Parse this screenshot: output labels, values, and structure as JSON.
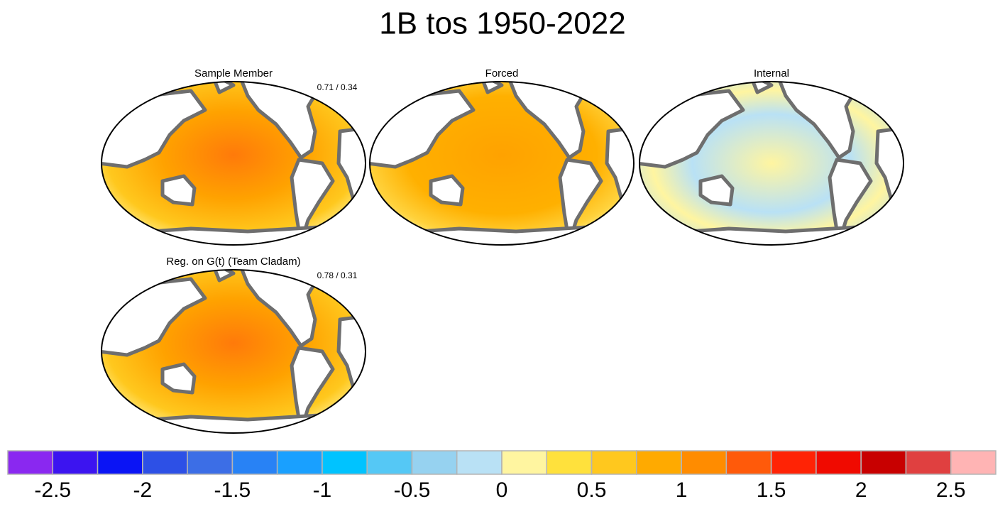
{
  "title": "1B tos 1950-2022",
  "panels": [
    {
      "title": "Sample Member",
      "annotation": "0.71 / 0.34"
    },
    {
      "title": "Forced"
    },
    {
      "title": "Internal"
    },
    {
      "title": "Reg. on G(t) (Team Cladam)",
      "annotation": "0.78 / 0.31"
    }
  ],
  "colorbar": {
    "lim": [
      -2.75,
      2.75
    ],
    "colors": [
      "#8a28f0",
      "#3c14f0",
      "#0a14f5",
      "#2d50e6",
      "#3c6ee6",
      "#2882f5",
      "#19a0ff",
      "#00c3ff",
      "#55c8f5",
      "#96d2f0",
      "#b9e1f5",
      "#fff5a0",
      "#ffe13c",
      "#ffc81e",
      "#ffaa00",
      "#ff8c00",
      "#ff5a0a",
      "#ff2305",
      "#f00a00",
      "#c80000",
      "#e04040",
      "#ffb4b4"
    ],
    "ticks": [
      -2.5,
      -2,
      -1.5,
      -1,
      -0.5,
      0,
      0.5,
      1,
      1.5,
      2,
      2.5
    ]
  }
}
